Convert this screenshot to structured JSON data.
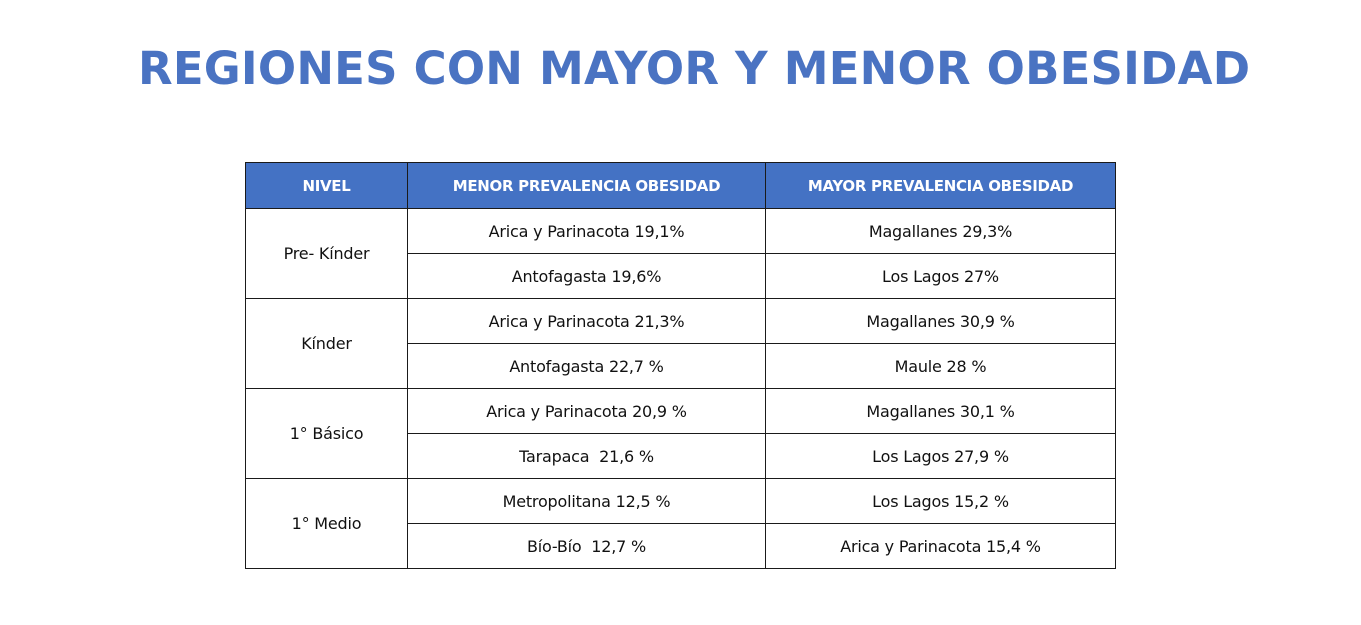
{
  "title": "REGIONES CON MAYOR Y MENOR OBESIDAD",
  "table": {
    "headers": {
      "nivel": "NIVEL",
      "menor": "MENOR PREVALENCIA OBESIDAD",
      "mayor": "MAYOR PREVALENCIA OBESIDAD"
    },
    "groups": [
      {
        "nivel": "Pre- Kínder",
        "rows": [
          {
            "menor": "Arica y Parinacota 19,1%",
            "mayor": "Magallanes 29,3%"
          },
          {
            "menor": "Antofagasta 19,6%",
            "mayor": "Los Lagos 27%"
          }
        ]
      },
      {
        "nivel": "Kínder",
        "rows": [
          {
            "menor": "Arica y Parinacota 21,3%",
            "mayor": "Magallanes 30,9 %"
          },
          {
            "menor": "Antofagasta 22,7 %",
            "mayor": "Maule 28 %"
          }
        ]
      },
      {
        "nivel": "1° Básico",
        "rows": [
          {
            "menor": "Arica y Parinacota 20,9 %",
            "mayor": "Magallanes 30,1 %"
          },
          {
            "menor": "Tarapaca  21,6 %",
            "mayor": "Los Lagos 27,9 %"
          }
        ]
      },
      {
        "nivel": "1° Medio",
        "rows": [
          {
            "menor": "Metropolitana 12,5 %",
            "mayor": "Los Lagos 15,2 %"
          },
          {
            "menor": "Bío-Bío  12,7 %",
            "mayor": "Arica y Parinacota 15,4 %"
          }
        ]
      }
    ]
  }
}
